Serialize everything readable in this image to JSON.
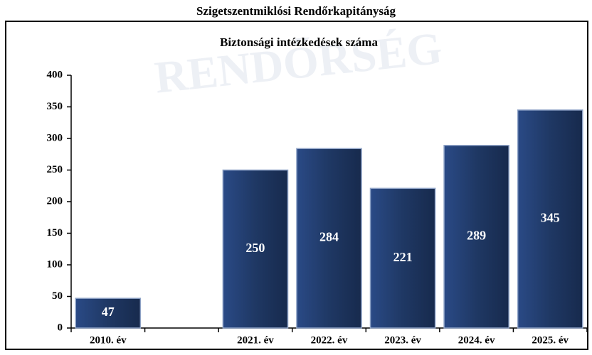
{
  "chart_data": {
    "type": "bar",
    "page_title": "Szigetszentmiklósi Rendőrkapitányság",
    "title": "Biztonsági intézkedések száma",
    "watermark": "RENDŐRSÉG",
    "categories": [
      "2010. év",
      null,
      "2021. év",
      "2022. év",
      "2023. év",
      "2024. év",
      "2025. év"
    ],
    "values": [
      47,
      null,
      250,
      284,
      221,
      289,
      345
    ],
    "color": "#1f3864",
    "ylim": [
      0,
      400
    ],
    "yticks": [
      0,
      50,
      100,
      150,
      200,
      250,
      300,
      350,
      400
    ],
    "grid": false
  }
}
